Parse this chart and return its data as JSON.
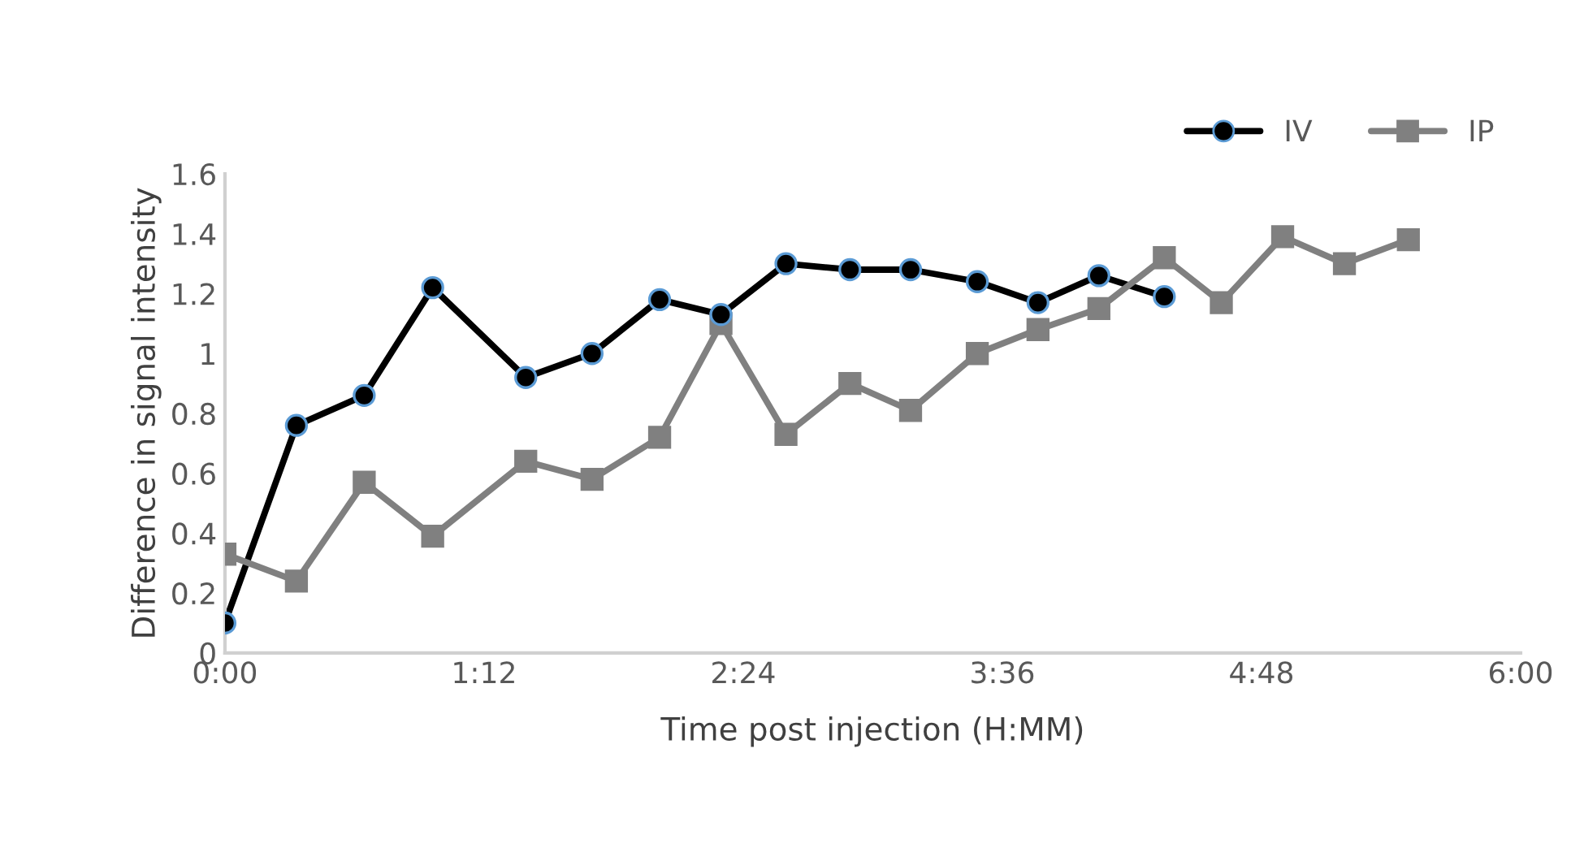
{
  "chart_data": {
    "type": "line",
    "xlabel": "Time post injection (H:MM)",
    "ylabel": "Difference in signal intensity",
    "x": [
      0,
      0.331,
      0.645,
      0.962,
      1.393,
      1.7,
      2.013,
      2.297,
      2.598,
      2.894,
      3.175,
      3.484,
      3.765,
      4.047,
      4.35,
      4.614,
      4.898,
      5.184,
      5.48
    ],
    "series": [
      {
        "name": "IV",
        "color": "#000000",
        "marker": "circle",
        "values": [
          0.1,
          0.76,
          0.86,
          1.22,
          0.92,
          1.0,
          1.18,
          1.13,
          1.3,
          1.28,
          1.28,
          1.24,
          1.17,
          1.26,
          1.19,
          null,
          null,
          null,
          null
        ]
      },
      {
        "name": "IP",
        "color": "#808080",
        "marker": "square",
        "values": [
          0.33,
          0.24,
          0.57,
          0.39,
          0.64,
          0.58,
          0.72,
          1.1,
          0.73,
          0.9,
          0.81,
          1.0,
          1.08,
          1.15,
          1.32,
          1.17,
          1.39,
          1.3,
          1.38
        ]
      }
    ],
    "xlim": [
      0,
      6
    ],
    "xticks": [
      {
        "value": 0,
        "label": "0:00"
      },
      {
        "value": 1.2,
        "label": "1:12"
      },
      {
        "value": 2.4,
        "label": "2:24"
      },
      {
        "value": 3.6,
        "label": "3:36"
      },
      {
        "value": 4.8,
        "label": "4:48"
      },
      {
        "value": 6,
        "label": "6:00"
      }
    ],
    "ylim": [
      0,
      1.6
    ],
    "yticks": [
      0,
      0.2,
      0.4,
      0.6,
      0.8,
      1,
      1.2,
      1.4,
      1.6
    ],
    "grid": false,
    "legend": "top right",
    "line_style": "solid"
  }
}
